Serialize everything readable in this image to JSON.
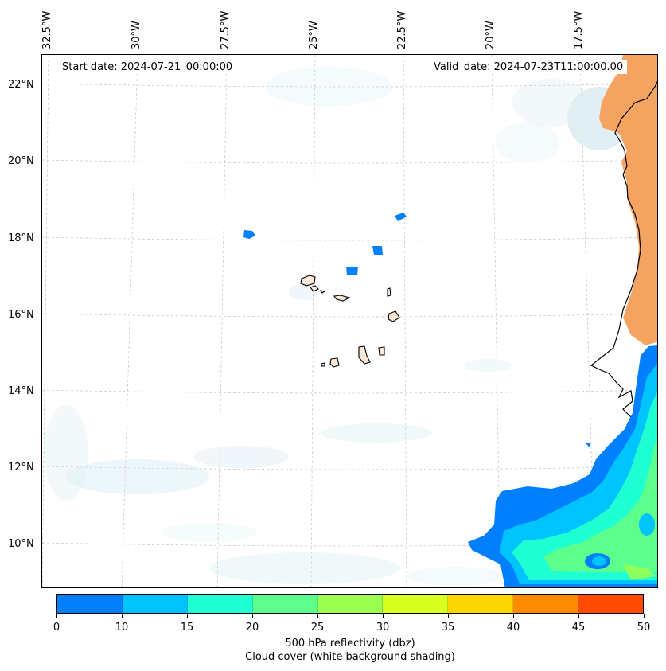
{
  "info": {
    "start_date": "Start date: 2024-07-21_00:00:00",
    "valid_date": "Valid_date: 2024-07-23T11:00:00.00"
  },
  "axes": {
    "lon_labels": [
      "32.5°W",
      "30°W",
      "27.5°W",
      "25°W",
      "22.5°W",
      "20°W",
      "17.5°W"
    ],
    "lat_labels": [
      "22°N",
      "20°N",
      "18°N",
      "16°N",
      "14°N",
      "12°N",
      "10°N"
    ]
  },
  "colorbar": {
    "ticks": [
      "0",
      "10",
      "15",
      "20",
      "25",
      "30",
      "35",
      "40",
      "45",
      "50"
    ],
    "colors": [
      "#0080ff",
      "#00c4ff",
      "#1effd2",
      "#5dff8c",
      "#9bff50",
      "#d8ff1e",
      "#ffd500",
      "#ff8c00",
      "#ff4a00"
    ],
    "label_line1": "500 hPa reflectivity (dbz)",
    "label_line2": "Cloud cover (white background shading)"
  },
  "map_colors": {
    "land": "#f4a460",
    "cloud": "#cfe6ee",
    "coast": "#000000",
    "grid": "#b0b0b0"
  }
}
